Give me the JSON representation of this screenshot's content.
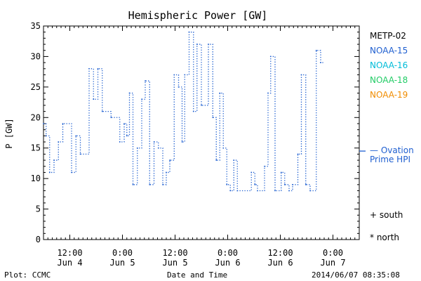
{
  "chart_data": {
    "type": "line",
    "title": "Hemispheric Power [GW]",
    "ylabel": "P [GW]",
    "xlabel": "Date and Time",
    "ylim": [
      0,
      35
    ],
    "yticks": [
      0,
      5,
      10,
      15,
      20,
      25,
      30,
      35
    ],
    "xlim_hours": [
      0,
      72
    ],
    "xticks": [
      {
        "hour": 6,
        "time": "12:00",
        "date": "Jun 4"
      },
      {
        "hour": 18,
        "time": "0:00",
        "date": "Jun 5"
      },
      {
        "hour": 30,
        "time": "12:00",
        "date": "Jun 5"
      },
      {
        "hour": 42,
        "time": "0:00",
        "date": "Jun 6"
      },
      {
        "hour": 54,
        "time": "12:00",
        "date": "Jun 6"
      },
      {
        "hour": 66,
        "time": "0:00",
        "date": "Jun 7"
      }
    ],
    "series": [
      {
        "name": "NOAA-15",
        "color": "#1f5fd0",
        "style": "dotted-step",
        "points": [
          [
            0.0,
            19
          ],
          [
            0.6,
            17
          ],
          [
            1.4,
            11
          ],
          [
            2.4,
            13
          ],
          [
            3.4,
            16
          ],
          [
            4.4,
            19
          ],
          [
            6.4,
            11
          ],
          [
            7.4,
            17
          ],
          [
            8.4,
            14
          ],
          [
            10.4,
            28
          ],
          [
            11.4,
            23
          ],
          [
            12.4,
            28
          ],
          [
            13.4,
            21
          ],
          [
            15.4,
            20
          ],
          [
            17.4,
            16
          ],
          [
            18.4,
            19
          ],
          [
            19.0,
            17
          ],
          [
            19.6,
            24
          ],
          [
            20.4,
            9
          ],
          [
            21.4,
            15
          ],
          [
            22.4,
            23
          ],
          [
            23.2,
            26
          ],
          [
            24.2,
            9
          ],
          [
            25.2,
            16
          ],
          [
            26.2,
            15
          ],
          [
            27.2,
            9
          ],
          [
            28.0,
            11
          ],
          [
            28.8,
            13
          ],
          [
            29.8,
            27
          ],
          [
            30.8,
            25
          ],
          [
            31.6,
            16
          ],
          [
            32.2,
            27
          ],
          [
            33.2,
            34
          ],
          [
            34.2,
            21
          ],
          [
            35.0,
            32
          ],
          [
            36.0,
            22
          ],
          [
            37.6,
            32
          ],
          [
            38.6,
            20
          ],
          [
            39.4,
            13
          ],
          [
            40.2,
            24
          ],
          [
            41.0,
            15
          ],
          [
            41.8,
            9
          ],
          [
            42.6,
            8
          ],
          [
            43.4,
            13
          ],
          [
            44.2,
            8
          ],
          [
            47.4,
            11
          ],
          [
            48.2,
            9
          ],
          [
            48.8,
            8
          ],
          [
            50.4,
            12
          ],
          [
            51.2,
            24
          ],
          [
            51.8,
            30
          ],
          [
            52.8,
            8
          ],
          [
            54.2,
            11
          ],
          [
            55.0,
            9
          ],
          [
            56.0,
            8
          ],
          [
            56.8,
            9
          ],
          [
            58.0,
            14
          ],
          [
            58.8,
            27
          ],
          [
            59.8,
            9
          ],
          [
            60.8,
            8
          ],
          [
            62.2,
            31
          ],
          [
            63.2,
            29
          ]
        ]
      }
    ],
    "legend": [
      {
        "label": "METP-02",
        "color": "#000000"
      },
      {
        "label": "NOAA-15",
        "color": "#1f5fd0"
      },
      {
        "label": "NOAA-16",
        "color": "#00bcd8"
      },
      {
        "label": "NOAA-18",
        "color": "#22cc66"
      },
      {
        "label": "NOAA-19",
        "color": "#f08c00"
      }
    ],
    "ovation": {
      "label_line1": "Ovation",
      "label_line2": "Prime HPI",
      "value": 14.5,
      "color": "#1f5fd0"
    },
    "markers": {
      "south": "+ south",
      "north": "* north"
    }
  },
  "footer": {
    "left": "Plot: CCMC",
    "center": "Date and Time",
    "right": "2014/06/07 08:35:08"
  }
}
